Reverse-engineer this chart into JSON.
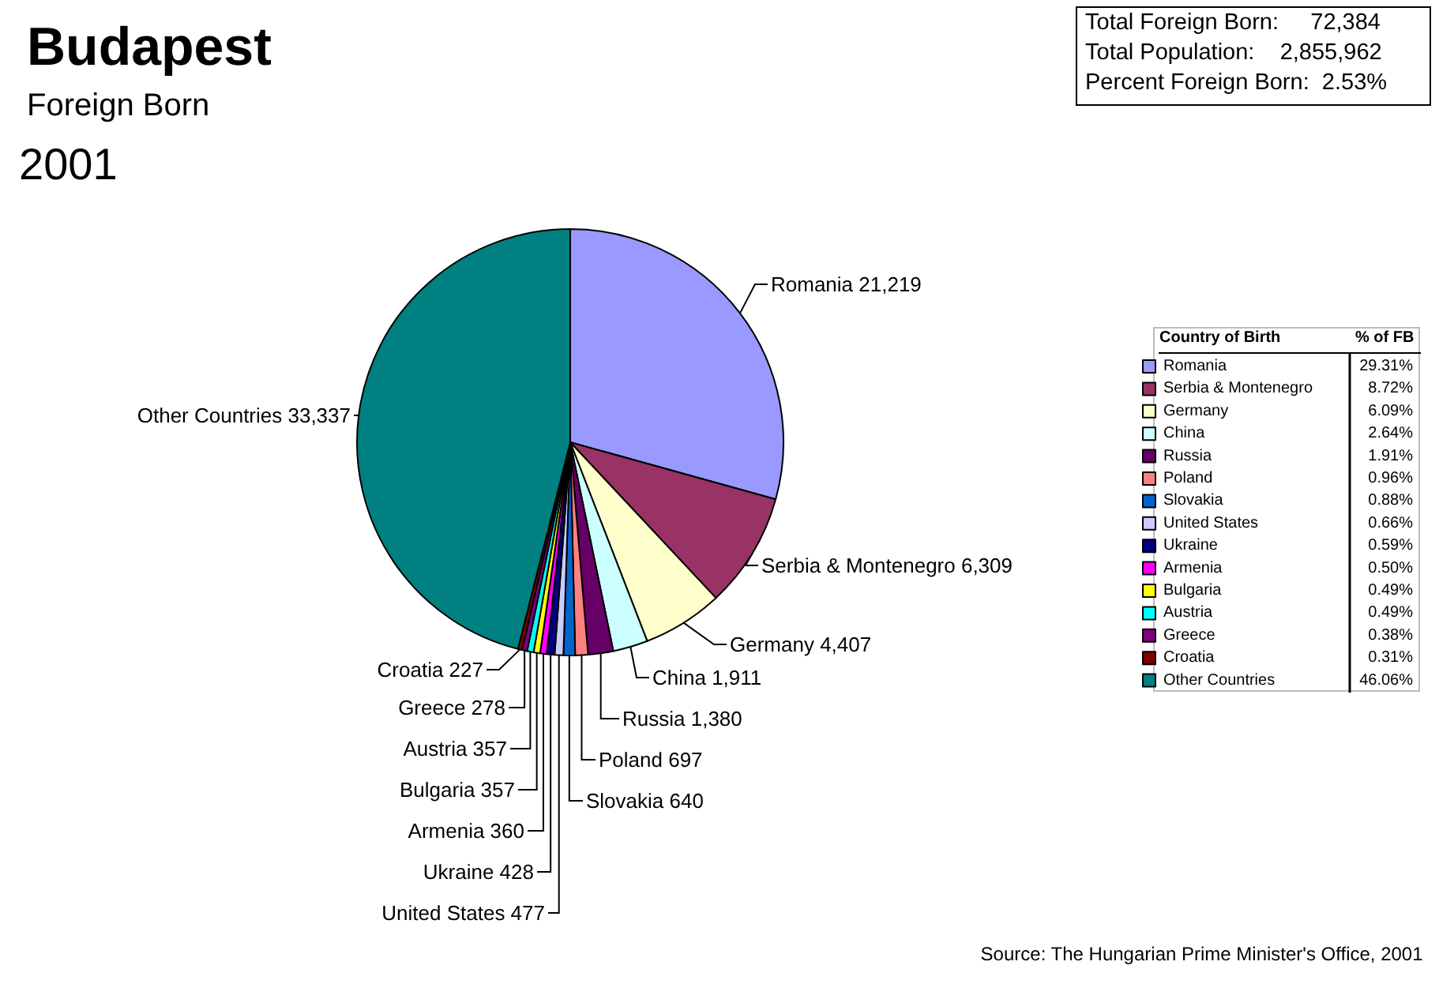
{
  "chart_data": {
    "type": "pie",
    "title": "Budapest",
    "subtitle": "Foreign Born",
    "categories": [
      "Romania",
      "Serbia & Montenegro",
      "Germany",
      "China",
      "Russia",
      "Poland",
      "Slovakia",
      "United States",
      "Ukraine",
      "Armenia",
      "Bulgaria",
      "Austria",
      "Greece",
      "Croatia",
      "Other Countries"
    ],
    "values": [
      21219,
      6309,
      4407,
      1911,
      1380,
      697,
      640,
      477,
      428,
      360,
      357,
      357,
      278,
      227,
      33337
    ],
    "colors": [
      "#9999ff",
      "#993366",
      "#ffffcc",
      "#ccffff",
      "#660066",
      "#ff8080",
      "#0066cc",
      "#ccccff",
      "#000080",
      "#ff00ff",
      "#ffff00",
      "#00ffff",
      "#800080",
      "#800000",
      "#008080"
    ],
    "value_labels": [
      "21,219",
      "6,309",
      "4,407",
      "1,911",
      "1,380",
      "697",
      "640",
      "477",
      "428",
      "360",
      "357",
      "357",
      "278",
      "227",
      "33,337"
    ],
    "legend": "right",
    "annotations": [
      "2001",
      "Total Foreign Born:     72,384",
      "Total Population:    2,855,962",
      "Percent Foreign Born:  2.53%",
      "Source: The Hungarian Prime Minister's Office, 2001",
      "Country of Birth",
      "% of FB",
      "29.31%",
      "8.72%",
      "6.09%",
      "2.64%",
      "1.91%",
      "0.96%",
      "0.88%",
      "0.66%",
      "0.59%",
      "0.50%",
      "0.49%",
      "0.49%",
      "0.38%",
      "0.31%",
      "46.06%"
    ]
  }
}
